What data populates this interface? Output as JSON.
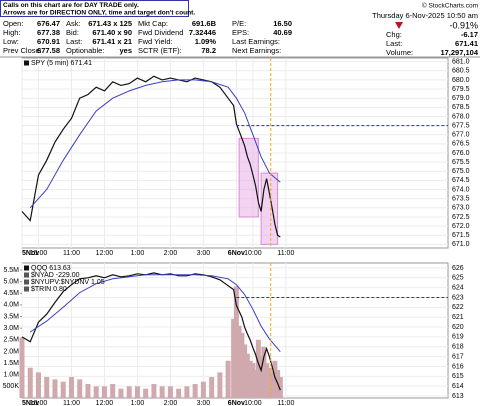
{
  "quote": {
    "notice": [
      "Calls on this chart are for DAY TRADE only.",
      "Arrows are for DIRECTION ONLY, time and target don't count."
    ],
    "copyright": "© StockCharts.com",
    "datetime": "Thursday  6-Nov-2025  10:50 am",
    "columns": [
      [
        {
          "label": "Open:",
          "value": "676.47"
        },
        {
          "label": "High:",
          "value": "677.38"
        },
        {
          "label": "Low:",
          "value": "670.91"
        },
        {
          "label": "Prev Close:",
          "value": "677.58"
        }
      ],
      [
        {
          "label": "Ask:",
          "value": "671.43 x 125"
        },
        {
          "label": "Bid:",
          "value": "671.40 x 90"
        },
        {
          "label": "Last:",
          "value": "671.41 x 21"
        },
        {
          "label": "Optionable:",
          "value": "yes"
        }
      ],
      [
        {
          "label": "Mkt Cap:",
          "value": "691.6B"
        },
        {
          "label": "Fwd Dividend",
          "value": "7.32446"
        },
        {
          "label": "Fwd Yield:",
          "value": "1.09%"
        },
        {
          "label": "SCTR (ETF):",
          "value": "78.2"
        }
      ],
      [
        {
          "label": "P/E:",
          "value": "16.50"
        },
        {
          "label": "EPS:",
          "value": "40.69"
        },
        {
          "label": "Last Earnings:",
          "value": ""
        },
        {
          "label": "Next Earnings:",
          "value": ""
        }
      ]
    ],
    "change_pct": "-0.91%",
    "change_rows": [
      {
        "label": "Chg:",
        "value": "-6.17"
      },
      {
        "label": "Last:",
        "value": "671.41"
      },
      {
        "label": "Volume:",
        "value": "17,297,104"
      }
    ]
  },
  "chart_data": [
    {
      "type": "line",
      "grid": true,
      "xlim": [
        0,
        155
      ],
      "xticks": [
        {
          "value": 0,
          "label": "5Nov"
        },
        {
          "value": 6,
          "label": "10:00"
        },
        {
          "value": 18,
          "label": "11:00"
        },
        {
          "value": 30,
          "label": "12:00"
        },
        {
          "value": 42,
          "label": "1:00"
        },
        {
          "value": 54,
          "label": "2:00"
        },
        {
          "value": 66,
          "label": "3:00"
        },
        {
          "value": 78,
          "label": "6Nov"
        },
        {
          "value": 84,
          "label": "10:00"
        },
        {
          "value": 96,
          "label": "11:00"
        }
      ],
      "ylim": [
        670.8,
        681.2
      ],
      "yticks": [
        {
          "value": 671,
          "label": "671.0"
        },
        671.5,
        {
          "value": 672,
          "label": "672.0"
        },
        672.5,
        {
          "value": 673,
          "label": "673.0"
        },
        673.5,
        {
          "value": 674,
          "label": "674.0"
        },
        674.5,
        {
          "value": 675,
          "label": "675.0"
        },
        675.5,
        {
          "value": 676,
          "label": "676.0"
        },
        676.5,
        {
          "value": 677,
          "label": "677.0"
        },
        677.5,
        {
          "value": 678,
          "label": "678.0"
        },
        678.5,
        {
          "value": 679,
          "label": "679.0"
        },
        679.5,
        {
          "value": 680,
          "label": "680.0"
        },
        680.5,
        {
          "value": 681,
          "label": "681.0"
        }
      ],
      "series": [
        {
          "name": "SPY (5 min) 671.41",
          "color": "#111111",
          "x": [
            0,
            3,
            6,
            9,
            12,
            15,
            18,
            21,
            24,
            27,
            30,
            33,
            36,
            39,
            42,
            45,
            48,
            51,
            54,
            57,
            60,
            63,
            66,
            69,
            72,
            75,
            77,
            78,
            79,
            80,
            81,
            82,
            83,
            84,
            85,
            86,
            87,
            88,
            89,
            90,
            91,
            92,
            93,
            94
          ],
          "values": [
            672.8,
            672.3,
            674.8,
            675.6,
            676.6,
            677.3,
            677.9,
            679.0,
            679.2,
            679.6,
            679.4,
            679.9,
            679.7,
            679.8,
            680.1,
            679.9,
            680.2,
            680.0,
            680.1,
            680.0,
            679.9,
            680.1,
            680.0,
            679.9,
            679.6,
            679.0,
            678.6,
            677.6,
            677.2,
            676.8,
            676.4,
            675.8,
            675.4,
            674.8,
            674.2,
            673.3,
            672.8,
            674.0,
            674.6,
            673.8,
            673.0,
            672.1,
            671.5,
            671.4
          ]
        },
        {
          "color": "#3a3fbf",
          "x": [
            3,
            9,
            15,
            21,
            27,
            33,
            39,
            45,
            51,
            57,
            63,
            69,
            75,
            78,
            81,
            84,
            87,
            90,
            94
          ],
          "values": [
            673.0,
            674.0,
            675.6,
            677.0,
            678.3,
            679.0,
            679.4,
            679.7,
            679.9,
            680.0,
            680.0,
            679.9,
            679.6,
            679.0,
            678.2,
            677.0,
            675.8,
            674.9,
            674.4
          ]
        }
      ],
      "hlines": [
        677.5
      ],
      "vlines": [
        90.5
      ],
      "boxes": [
        {
          "x": [
            79,
            86
          ],
          "y": [
            672.5,
            676.8
          ]
        },
        {
          "x": [
            87,
            93
          ],
          "y": [
            671,
            674.9
          ]
        }
      ]
    },
    {
      "type": "line",
      "grid": true,
      "xlim": [
        0,
        155
      ],
      "xticks": [
        {
          "value": 0,
          "label": "5Nov"
        },
        {
          "value": 6,
          "label": "10:00"
        },
        {
          "value": 18,
          "label": "11:00"
        },
        {
          "value": 30,
          "label": "12:00"
        },
        {
          "value": 42,
          "label": "1:00"
        },
        {
          "value": 54,
          "label": "2:00"
        },
        {
          "value": 66,
          "label": "3:00"
        },
        {
          "value": 78,
          "label": "6Nov"
        },
        {
          "value": 84,
          "label": "10:00"
        },
        {
          "value": 96,
          "label": "11:00"
        }
      ],
      "ylim": [
        612.8,
        626.5
      ],
      "yticks": [
        613,
        614,
        615,
        616,
        617,
        618,
        619,
        620,
        621,
        622,
        623,
        624,
        625,
        626
      ],
      "y2lim": [
        0,
        5800000
      ],
      "y2ticks": [
        {
          "value": 500000,
          "label": "500K"
        },
        {
          "value": 1000000,
          "label": "1.0M"
        },
        {
          "value": 1500000,
          "label": "1.5M"
        },
        {
          "value": 2000000,
          "label": "2.0M"
        },
        {
          "value": 2500000,
          "label": "2.5M"
        },
        {
          "value": 3000000,
          "label": "3.0M"
        },
        {
          "value": 3500000,
          "label": "3.5M"
        },
        {
          "value": 4000000,
          "label": "4.0M"
        },
        {
          "value": 4500000,
          "label": "4.5M"
        },
        {
          "value": 5000000,
          "label": "5.0M"
        },
        {
          "value": 5500000,
          "label": "5.5M"
        }
      ],
      "legend_extra": [
        "$NYAD -229.00",
        "$NYUPV:$NYDNV 1.05",
        "$TRIN 0.80"
      ],
      "series": [
        {
          "type": "bar",
          "axis": "y2",
          "color": "#cfa9ae",
          "x": [
            0,
            3,
            6,
            9,
            12,
            15,
            18,
            21,
            24,
            27,
            30,
            33,
            36,
            39,
            42,
            45,
            48,
            51,
            54,
            57,
            60,
            63,
            66,
            69,
            72,
            75,
            77,
            78,
            79,
            80,
            81,
            82,
            83,
            84,
            85,
            86,
            87,
            88,
            89,
            90,
            91,
            92,
            93,
            94
          ],
          "values": [
            2600000,
            1300000,
            1100000,
            900000,
            800000,
            700000,
            900000,
            800000,
            600000,
            500000,
            500000,
            600000,
            400000,
            500000,
            500000,
            400000,
            600000,
            500000,
            500000,
            400000,
            500000,
            600000,
            700000,
            900000,
            1100000,
            1600000,
            3400000,
            4800000,
            3100000,
            2800000,
            2300000,
            1900000,
            1600000,
            1500000,
            1200000,
            2500000,
            1800000,
            2200000,
            1500000,
            1300000,
            1100000,
            1600000,
            1200000,
            900000
          ]
        },
        {
          "name": "QQQ 613.63",
          "color": "#111111",
          "x": [
            0,
            3,
            6,
            9,
            12,
            15,
            18,
            21,
            24,
            27,
            30,
            33,
            36,
            39,
            42,
            45,
            48,
            51,
            54,
            57,
            60,
            63,
            66,
            69,
            72,
            75,
            77,
            78,
            79,
            80,
            81,
            82,
            83,
            84,
            85,
            86,
            87,
            88,
            89,
            90,
            91,
            92,
            93,
            94
          ],
          "values": [
            619.0,
            618.5,
            620.5,
            621.3,
            622.5,
            623.6,
            624.3,
            624.9,
            625.0,
            625.2,
            625.0,
            625.3,
            625.1,
            625.2,
            625.4,
            625.3,
            625.5,
            625.3,
            625.4,
            625.2,
            625.2,
            625.4,
            625.3,
            625.1,
            624.8,
            624.2,
            623.8,
            622.2,
            621.6,
            621.0,
            620.0,
            619.3,
            618.7,
            617.9,
            617.2,
            616.3,
            615.6,
            617.0,
            617.8,
            617.0,
            616.0,
            614.9,
            614.3,
            613.6
          ]
        },
        {
          "color": "#3a3fbf",
          "x": [
            3,
            9,
            15,
            21,
            27,
            33,
            39,
            45,
            51,
            57,
            63,
            69,
            75,
            78,
            81,
            84,
            87,
            90,
            94
          ],
          "values": [
            619.5,
            620.6,
            622.0,
            623.5,
            624.4,
            624.9,
            625.1,
            625.3,
            625.3,
            625.3,
            625.3,
            625.2,
            624.9,
            624.3,
            623.3,
            621.8,
            620.1,
            618.8,
            617.5
          ]
        }
      ],
      "hlines": [
        623
      ],
      "vlines": [
        90.5
      ]
    }
  ]
}
